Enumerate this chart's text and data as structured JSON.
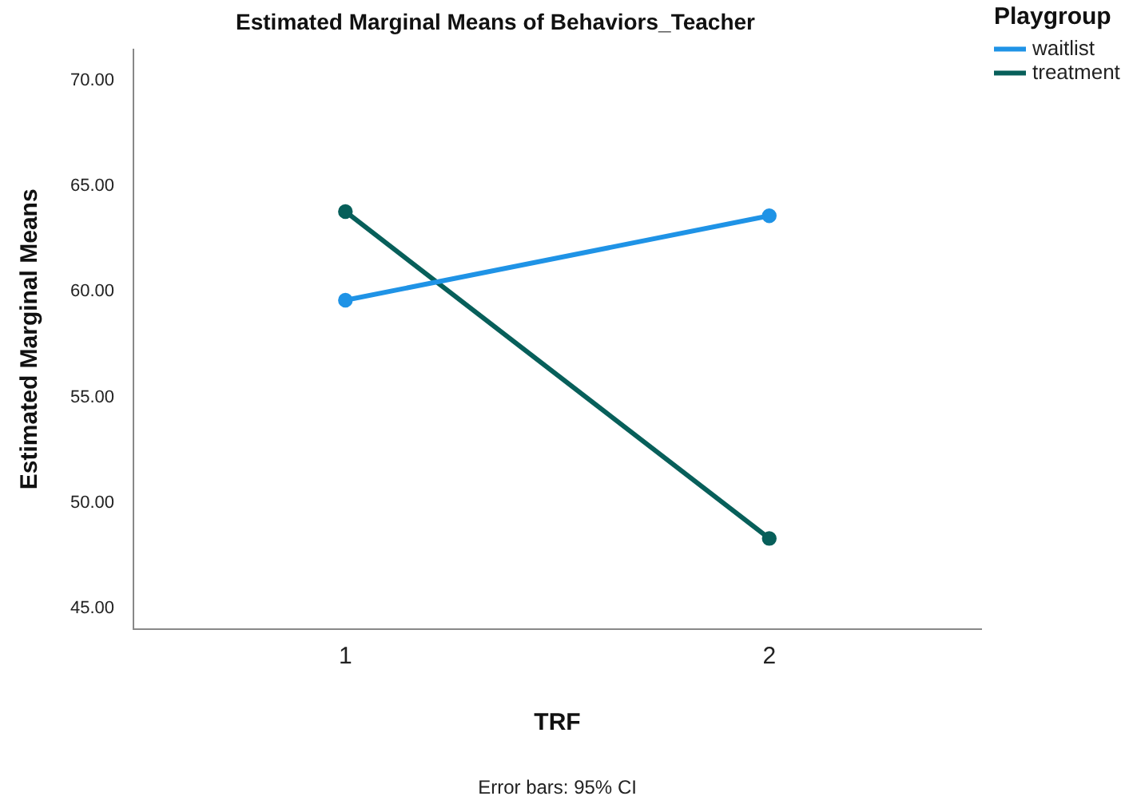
{
  "chart_data": {
    "type": "line",
    "title": "Estimated Marginal Means of Behaviors_Teacher",
    "xlabel": "TRF",
    "ylabel": "Estimated Marginal Means",
    "legend_title": "Playgroup",
    "annotations": [
      "Error bars: 95% CI"
    ],
    "categories": [
      "1",
      "2"
    ],
    "series": [
      {
        "name": "waitlist",
        "color": "#1f93e6",
        "values": [
          59.6,
          63.6
        ]
      },
      {
        "name": "treatment",
        "color": "#075f5a",
        "values": [
          63.8,
          48.3
        ]
      }
    ],
    "ylim": [
      44,
      71.5
    ],
    "yticks": [
      {
        "value": 45,
        "label": "45.00"
      },
      {
        "value": 50,
        "label": "50.00"
      },
      {
        "value": 55,
        "label": "55.00"
      },
      {
        "value": 60,
        "label": "60.00"
      },
      {
        "value": 65,
        "label": "65.00"
      },
      {
        "value": 70,
        "label": "70.00"
      }
    ],
    "grid": false,
    "legend": "top right",
    "marker": "circle",
    "line_style": "solid"
  }
}
